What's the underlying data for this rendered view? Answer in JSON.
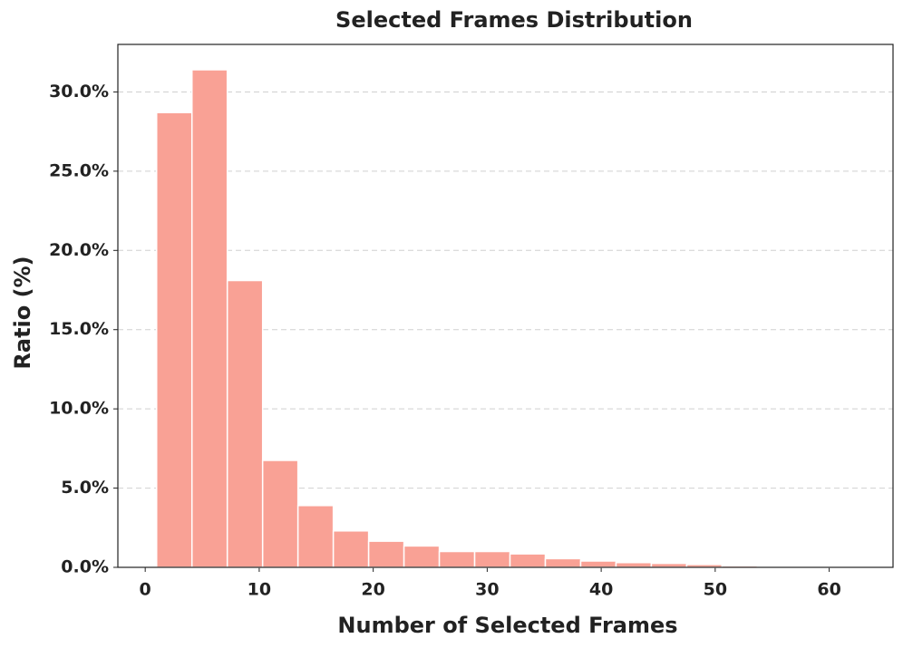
{
  "chart_data": {
    "type": "histogram",
    "title": "Selected Frames Distribution",
    "xlabel": "Number of Selected Frames",
    "ylabel": "Ratio (%)",
    "bins": [
      1,
      4.1,
      7.2,
      10.3,
      13.4,
      16.5,
      19.6,
      22.7,
      25.8,
      28.9,
      32,
      35.1,
      38.2,
      41.3,
      44.4,
      47.5,
      50.6,
      53.7,
      56.8,
      59.9,
      63
    ],
    "values": [
      28.7,
      31.4,
      18.1,
      6.75,
      3.9,
      2.3,
      1.65,
      1.35,
      1.0,
      1.0,
      0.85,
      0.55,
      0.4,
      0.3,
      0.25,
      0.18,
      0.1,
      0.08,
      0.03,
      0.02
    ],
    "color": "#f9a195",
    "xlim": [
      -2.4,
      65.6
    ],
    "xticks": [
      0,
      10,
      20,
      30,
      40,
      50,
      60
    ],
    "ylim": [
      0,
      33.0
    ],
    "yticks": [
      {
        "value": 0,
        "label": "0.0%"
      },
      {
        "value": 5,
        "label": "5.0%"
      },
      {
        "value": 10,
        "label": "10.0%"
      },
      {
        "value": 15,
        "label": "15.0%"
      },
      {
        "value": 20,
        "label": "20.0%"
      },
      {
        "value": 25,
        "label": "25.0%"
      },
      {
        "value": 30,
        "label": "30.0%"
      }
    ],
    "grid": true
  }
}
